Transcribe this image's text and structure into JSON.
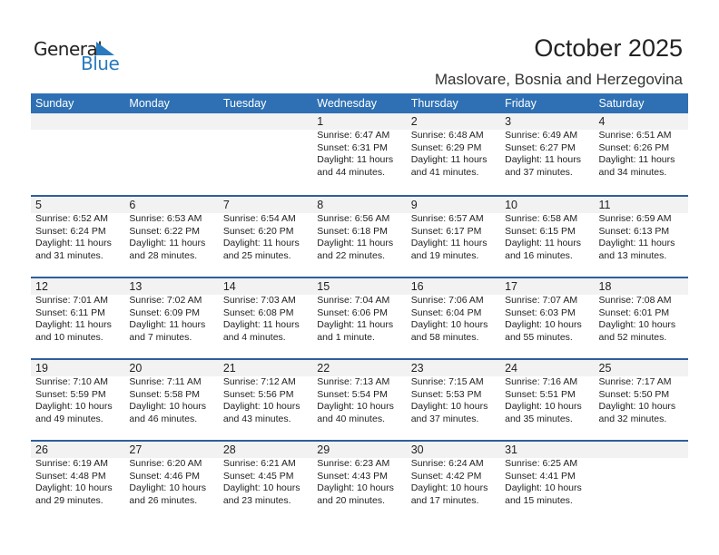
{
  "logo": {
    "general": "General",
    "blue": "Blue"
  },
  "header": {
    "title": "October 2025",
    "location": "Maslovare, Bosnia and Herzegovina"
  },
  "weekdays": [
    "Sunday",
    "Monday",
    "Tuesday",
    "Wednesday",
    "Thursday",
    "Friday",
    "Saturday"
  ],
  "weeks": [
    [
      null,
      null,
      null,
      {
        "day": "1",
        "sunrise": "Sunrise: 6:47 AM",
        "sunset": "Sunset: 6:31 PM",
        "daylight": "Daylight: 11 hours",
        "minutes": "and 44 minutes."
      },
      {
        "day": "2",
        "sunrise": "Sunrise: 6:48 AM",
        "sunset": "Sunset: 6:29 PM",
        "daylight": "Daylight: 11 hours",
        "minutes": "and 41 minutes."
      },
      {
        "day": "3",
        "sunrise": "Sunrise: 6:49 AM",
        "sunset": "Sunset: 6:27 PM",
        "daylight": "Daylight: 11 hours",
        "minutes": "and 37 minutes."
      },
      {
        "day": "4",
        "sunrise": "Sunrise: 6:51 AM",
        "sunset": "Sunset: 6:26 PM",
        "daylight": "Daylight: 11 hours",
        "minutes": "and 34 minutes."
      }
    ],
    [
      {
        "day": "5",
        "sunrise": "Sunrise: 6:52 AM",
        "sunset": "Sunset: 6:24 PM",
        "daylight": "Daylight: 11 hours",
        "minutes": "and 31 minutes."
      },
      {
        "day": "6",
        "sunrise": "Sunrise: 6:53 AM",
        "sunset": "Sunset: 6:22 PM",
        "daylight": "Daylight: 11 hours",
        "minutes": "and 28 minutes."
      },
      {
        "day": "7",
        "sunrise": "Sunrise: 6:54 AM",
        "sunset": "Sunset: 6:20 PM",
        "daylight": "Daylight: 11 hours",
        "minutes": "and 25 minutes."
      },
      {
        "day": "8",
        "sunrise": "Sunrise: 6:56 AM",
        "sunset": "Sunset: 6:18 PM",
        "daylight": "Daylight: 11 hours",
        "minutes": "and 22 minutes."
      },
      {
        "day": "9",
        "sunrise": "Sunrise: 6:57 AM",
        "sunset": "Sunset: 6:17 PM",
        "daylight": "Daylight: 11 hours",
        "minutes": "and 19 minutes."
      },
      {
        "day": "10",
        "sunrise": "Sunrise: 6:58 AM",
        "sunset": "Sunset: 6:15 PM",
        "daylight": "Daylight: 11 hours",
        "minutes": "and 16 minutes."
      },
      {
        "day": "11",
        "sunrise": "Sunrise: 6:59 AM",
        "sunset": "Sunset: 6:13 PM",
        "daylight": "Daylight: 11 hours",
        "minutes": "and 13 minutes."
      }
    ],
    [
      {
        "day": "12",
        "sunrise": "Sunrise: 7:01 AM",
        "sunset": "Sunset: 6:11 PM",
        "daylight": "Daylight: 11 hours",
        "minutes": "and 10 minutes."
      },
      {
        "day": "13",
        "sunrise": "Sunrise: 7:02 AM",
        "sunset": "Sunset: 6:09 PM",
        "daylight": "Daylight: 11 hours",
        "minutes": "and 7 minutes."
      },
      {
        "day": "14",
        "sunrise": "Sunrise: 7:03 AM",
        "sunset": "Sunset: 6:08 PM",
        "daylight": "Daylight: 11 hours",
        "minutes": "and 4 minutes."
      },
      {
        "day": "15",
        "sunrise": "Sunrise: 7:04 AM",
        "sunset": "Sunset: 6:06 PM",
        "daylight": "Daylight: 11 hours",
        "minutes": "and 1 minute."
      },
      {
        "day": "16",
        "sunrise": "Sunrise: 7:06 AM",
        "sunset": "Sunset: 6:04 PM",
        "daylight": "Daylight: 10 hours",
        "minutes": "and 58 minutes."
      },
      {
        "day": "17",
        "sunrise": "Sunrise: 7:07 AM",
        "sunset": "Sunset: 6:03 PM",
        "daylight": "Daylight: 10 hours",
        "minutes": "and 55 minutes."
      },
      {
        "day": "18",
        "sunrise": "Sunrise: 7:08 AM",
        "sunset": "Sunset: 6:01 PM",
        "daylight": "Daylight: 10 hours",
        "minutes": "and 52 minutes."
      }
    ],
    [
      {
        "day": "19",
        "sunrise": "Sunrise: 7:10 AM",
        "sunset": "Sunset: 5:59 PM",
        "daylight": "Daylight: 10 hours",
        "minutes": "and 49 minutes."
      },
      {
        "day": "20",
        "sunrise": "Sunrise: 7:11 AM",
        "sunset": "Sunset: 5:58 PM",
        "daylight": "Daylight: 10 hours",
        "minutes": "and 46 minutes."
      },
      {
        "day": "21",
        "sunrise": "Sunrise: 7:12 AM",
        "sunset": "Sunset: 5:56 PM",
        "daylight": "Daylight: 10 hours",
        "minutes": "and 43 minutes."
      },
      {
        "day": "22",
        "sunrise": "Sunrise: 7:13 AM",
        "sunset": "Sunset: 5:54 PM",
        "daylight": "Daylight: 10 hours",
        "minutes": "and 40 minutes."
      },
      {
        "day": "23",
        "sunrise": "Sunrise: 7:15 AM",
        "sunset": "Sunset: 5:53 PM",
        "daylight": "Daylight: 10 hours",
        "minutes": "and 37 minutes."
      },
      {
        "day": "24",
        "sunrise": "Sunrise: 7:16 AM",
        "sunset": "Sunset: 5:51 PM",
        "daylight": "Daylight: 10 hours",
        "minutes": "and 35 minutes."
      },
      {
        "day": "25",
        "sunrise": "Sunrise: 7:17 AM",
        "sunset": "Sunset: 5:50 PM",
        "daylight": "Daylight: 10 hours",
        "minutes": "and 32 minutes."
      }
    ],
    [
      {
        "day": "26",
        "sunrise": "Sunrise: 6:19 AM",
        "sunset": "Sunset: 4:48 PM",
        "daylight": "Daylight: 10 hours",
        "minutes": "and 29 minutes."
      },
      {
        "day": "27",
        "sunrise": "Sunrise: 6:20 AM",
        "sunset": "Sunset: 4:46 PM",
        "daylight": "Daylight: 10 hours",
        "minutes": "and 26 minutes."
      },
      {
        "day": "28",
        "sunrise": "Sunrise: 6:21 AM",
        "sunset": "Sunset: 4:45 PM",
        "daylight": "Daylight: 10 hours",
        "minutes": "and 23 minutes."
      },
      {
        "day": "29",
        "sunrise": "Sunrise: 6:23 AM",
        "sunset": "Sunset: 4:43 PM",
        "daylight": "Daylight: 10 hours",
        "minutes": "and 20 minutes."
      },
      {
        "day": "30",
        "sunrise": "Sunrise: 6:24 AM",
        "sunset": "Sunset: 4:42 PM",
        "daylight": "Daylight: 10 hours",
        "minutes": "and 17 minutes."
      },
      {
        "day": "31",
        "sunrise": "Sunrise: 6:25 AM",
        "sunset": "Sunset: 4:41 PM",
        "daylight": "Daylight: 10 hours",
        "minutes": "and 15 minutes."
      },
      null
    ]
  ]
}
